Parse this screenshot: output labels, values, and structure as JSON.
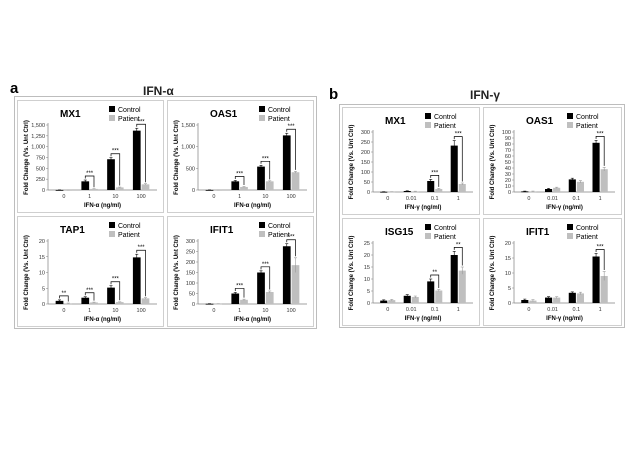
{
  "figure": {
    "panels": [
      {
        "letter": "a",
        "title": "IFN-α"
      },
      {
        "letter": "b",
        "title": "IFN-γ"
      }
    ],
    "legend": {
      "control": "Control",
      "patient": "Patient"
    },
    "colors": {
      "control": "#000000",
      "patient": "#bfbfbf"
    }
  },
  "chart_data": [
    {
      "type": "bar",
      "panel": "a",
      "title": "MX1",
      "ylabel": "Fold Change (Vs. Unt Ctrl)",
      "xlabel": "IFN-α (ng/ml)",
      "categories": [
        "0",
        "1",
        "10",
        "100"
      ],
      "ylim": [
        0,
        1500
      ],
      "yticks": [
        {
          "v": 0,
          "l": "0"
        },
        {
          "v": 250,
          "l": "250"
        },
        {
          "v": 500,
          "l": "500"
        },
        {
          "v": 750,
          "l": "750"
        },
        {
          "v": 1000,
          "l": "1,000"
        },
        {
          "v": 1250,
          "l": "1,250"
        },
        {
          "v": 1500,
          "l": "1,500"
        }
      ],
      "series": [
        {
          "name": "Control",
          "values": [
            1,
            200,
            710,
            1370
          ],
          "errors": [
            1,
            30,
            35,
            55
          ]
        },
        {
          "name": "Patient",
          "values": [
            1,
            25,
            60,
            130
          ],
          "errors": [
            1,
            5,
            8,
            15
          ]
        }
      ],
      "significance": [
        {
          "index": 1,
          "label": "***"
        },
        {
          "index": 2,
          "label": "***"
        },
        {
          "index": 3,
          "label": "***"
        }
      ]
    },
    {
      "type": "bar",
      "panel": "a",
      "title": "OAS1",
      "ylabel": "Fold Change (Vs. Unt Ctrl)",
      "xlabel": "IFN-α (ng/ml)",
      "categories": [
        "0",
        "1",
        "10",
        "100"
      ],
      "ylim": [
        0,
        1500
      ],
      "yticks": [
        {
          "v": 0,
          "l": "0"
        },
        {
          "v": 500,
          "l": "500"
        },
        {
          "v": 1000,
          "l": "1,000"
        },
        {
          "v": 1500,
          "l": "1,500"
        }
      ],
      "series": [
        {
          "name": "Control",
          "values": [
            1,
            200,
            540,
            1260
          ],
          "errors": [
            1,
            20,
            30,
            50
          ]
        },
        {
          "name": "Patient",
          "values": [
            1,
            70,
            200,
            410
          ],
          "errors": [
            1,
            10,
            12,
            20
          ]
        }
      ],
      "significance": [
        {
          "index": 1,
          "label": "***"
        },
        {
          "index": 2,
          "label": "***"
        },
        {
          "index": 3,
          "label": "***"
        }
      ]
    },
    {
      "type": "bar",
      "panel": "a",
      "title": "TAP1",
      "ylabel": "Fold Change (Vs. Unt Ctrl)",
      "xlabel": "IFN-α (ng/ml)",
      "categories": [
        "0",
        "1",
        "10",
        "100"
      ],
      "ylim": [
        0,
        20
      ],
      "yticks": [
        {
          "v": 0,
          "l": "0"
        },
        {
          "v": 5,
          "l": "5"
        },
        {
          "v": 10,
          "l": "10"
        },
        {
          "v": 15,
          "l": "15"
        },
        {
          "v": 20,
          "l": "20"
        }
      ],
      "series": [
        {
          "name": "Control",
          "values": [
            1,
            2,
            5.2,
            14.8
          ],
          "errors": [
            0.3,
            0.3,
            0.6,
            1.0
          ]
        },
        {
          "name": "Patient",
          "values": [
            0.2,
            0.5,
            0.6,
            1.8
          ],
          "errors": [
            0.1,
            0.1,
            0.1,
            0.2
          ]
        }
      ],
      "significance": [
        {
          "index": 0,
          "label": "**"
        },
        {
          "index": 1,
          "label": "***"
        },
        {
          "index": 2,
          "label": "***"
        },
        {
          "index": 3,
          "label": "***"
        }
      ]
    },
    {
      "type": "bar",
      "panel": "a",
      "title": "IFIT1",
      "ylabel": "Fold Change (Vs. Unt Ctrl)",
      "xlabel": "IFN-α (ng/ml)",
      "categories": [
        "0",
        "1",
        "10",
        "100"
      ],
      "ylim": [
        0,
        300
      ],
      "yticks": [
        {
          "v": 0,
          "l": "0"
        },
        {
          "v": 50,
          "l": "50"
        },
        {
          "v": 100,
          "l": "100"
        },
        {
          "v": 150,
          "l": "150"
        },
        {
          "v": 200,
          "l": "200"
        },
        {
          "v": 250,
          "l": "250"
        },
        {
          "v": 300,
          "l": "300"
        }
      ],
      "series": [
        {
          "name": "Control",
          "values": [
            1,
            50,
            150,
            275
          ],
          "errors": [
            0.5,
            5,
            8,
            12
          ]
        },
        {
          "name": "Patient",
          "values": [
            1,
            20,
            57,
            185
          ],
          "errors": [
            0.5,
            3,
            5,
            35
          ]
        }
      ],
      "significance": [
        {
          "index": 1,
          "label": "***"
        },
        {
          "index": 2,
          "label": "***"
        },
        {
          "index": 3,
          "label": "***"
        }
      ]
    },
    {
      "type": "bar",
      "panel": "b",
      "title": "MX1",
      "ylabel": "Fold Change (Vs. Unt Ctrl)",
      "xlabel": "IFN-γ (ng/ml)",
      "categories": [
        "0",
        "0.01",
        "0.1",
        "1"
      ],
      "ylim": [
        0,
        300
      ],
      "yticks": [
        {
          "v": 0,
          "l": "0"
        },
        {
          "v": 50,
          "l": "50"
        },
        {
          "v": 100,
          "l": "100"
        },
        {
          "v": 150,
          "l": "150"
        },
        {
          "v": 200,
          "l": "200"
        },
        {
          "v": 250,
          "l": "250"
        },
        {
          "v": 300,
          "l": "300"
        }
      ],
      "series": [
        {
          "name": "Control",
          "values": [
            1,
            5,
            55,
            232
          ],
          "errors": [
            0.5,
            1,
            8,
            25
          ]
        },
        {
          "name": "Patient",
          "values": [
            1,
            3,
            15,
            40
          ],
          "errors": [
            0.5,
            1,
            3,
            5
          ]
        }
      ],
      "significance": [
        {
          "index": 2,
          "label": "***"
        },
        {
          "index": 3,
          "label": "***"
        }
      ]
    },
    {
      "type": "bar",
      "panel": "b",
      "title": "OAS1",
      "ylabel": "Fold Change (Vs. Unt Ctrl)",
      "xlabel": "IFN-γ (ng/ml)",
      "categories": [
        "0",
        "0.01",
        "0.1",
        "1"
      ],
      "ylim": [
        0,
        100
      ],
      "yticks": [
        {
          "v": 0,
          "l": "0"
        },
        {
          "v": 10,
          "l": "10"
        },
        {
          "v": 20,
          "l": "20"
        },
        {
          "v": 30,
          "l": "30"
        },
        {
          "v": 40,
          "l": "40"
        },
        {
          "v": 50,
          "l": "50"
        },
        {
          "v": 60,
          "l": "60"
        },
        {
          "v": 70,
          "l": "70"
        },
        {
          "v": 80,
          "l": "80"
        },
        {
          "v": 90,
          "l": "90"
        },
        {
          "v": 100,
          "l": "100"
        }
      ],
      "series": [
        {
          "name": "Control",
          "values": [
            1,
            5,
            21,
            82
          ],
          "errors": [
            0.5,
            1,
            2,
            4
          ]
        },
        {
          "name": "Patient",
          "values": [
            1,
            7,
            17,
            38
          ],
          "errors": [
            0.5,
            1,
            2,
            3
          ]
        }
      ],
      "significance": [
        {
          "index": 3,
          "label": "***"
        }
      ]
    },
    {
      "type": "bar",
      "panel": "b",
      "title": "ISG15",
      "ylabel": "Fold Change (Vs. Unt Ctrl)",
      "xlabel": "IFN-γ (ng/ml)",
      "categories": [
        "0",
        "0.01",
        "0.1",
        "1"
      ],
      "ylim": [
        0,
        25
      ],
      "yticks": [
        {
          "v": 0,
          "l": "0"
        },
        {
          "v": 5,
          "l": "5"
        },
        {
          "v": 10,
          "l": "10"
        },
        {
          "v": 15,
          "l": "15"
        },
        {
          "v": 20,
          "l": "20"
        },
        {
          "v": 25,
          "l": "25"
        }
      ],
      "series": [
        {
          "name": "Control",
          "values": [
            1,
            3,
            9,
            20
          ],
          "errors": [
            0.3,
            0.5,
            1,
            1.5
          ]
        },
        {
          "name": "Patient",
          "values": [
            1.2,
            2.5,
            5.2,
            13.5
          ],
          "errors": [
            0.3,
            0.4,
            0.4,
            1.5
          ]
        }
      ],
      "significance": [
        {
          "index": 2,
          "label": "**"
        },
        {
          "index": 3,
          "label": "**"
        }
      ]
    },
    {
      "type": "bar",
      "panel": "b",
      "title": "IFIT1",
      "ylabel": "Fold Change (Vs. Unt Ctrl)",
      "xlabel": "IFN-γ (ng/ml)",
      "categories": [
        "0",
        "0.01",
        "0.1",
        "1"
      ],
      "ylim": [
        0,
        20
      ],
      "yticks": [
        {
          "v": 0,
          "l": "0"
        },
        {
          "v": 5,
          "l": "5"
        },
        {
          "v": 10,
          "l": "10"
        },
        {
          "v": 15,
          "l": "15"
        },
        {
          "v": 20,
          "l": "20"
        }
      ],
      "series": [
        {
          "name": "Control",
          "values": [
            1,
            1.8,
            3.4,
            15.5
          ],
          "errors": [
            0.3,
            0.3,
            0.3,
            1.0
          ]
        },
        {
          "name": "Patient",
          "values": [
            0.8,
            1.8,
            3.2,
            9
          ],
          "errors": [
            0.3,
            0.3,
            0.4,
            1.5
          ]
        }
      ],
      "significance": [
        {
          "index": 3,
          "label": "***"
        }
      ]
    }
  ]
}
